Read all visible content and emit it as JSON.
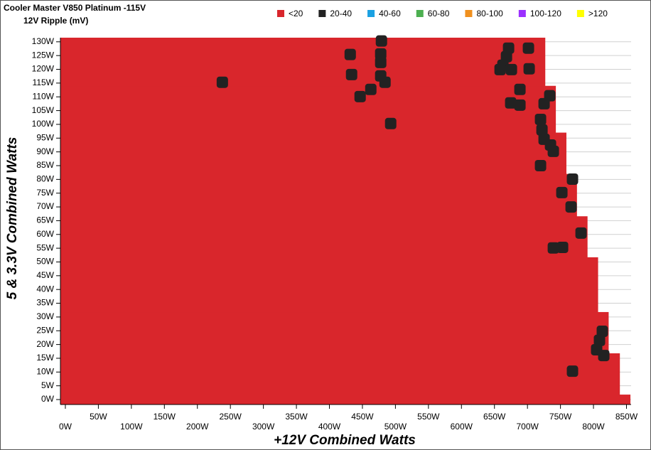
{
  "chart_data": {
    "type": "heatmap",
    "title": "Cooler Master V850 Platinum -115V",
    "subtitle": "12V Ripple (mV)",
    "x_label": "+12V Combined Watts",
    "y_label": "5 & 3.3V Combined Watts",
    "xlim": [
      -7.5,
      857
    ],
    "ylim": [
      -1.8,
      131.5
    ],
    "xticks": [
      {
        "value": 0,
        "label": "0W"
      },
      {
        "value": 50,
        "label": "50W"
      },
      {
        "value": 100,
        "label": "100W"
      },
      {
        "value": 150,
        "label": "150W"
      },
      {
        "value": 200,
        "label": "200W"
      },
      {
        "value": 250,
        "label": "250W"
      },
      {
        "value": 300,
        "label": "300W"
      },
      {
        "value": 350,
        "label": "350W"
      },
      {
        "value": 400,
        "label": "400W"
      },
      {
        "value": 450,
        "label": "450W"
      },
      {
        "value": 500,
        "label": "500W"
      },
      {
        "value": 550,
        "label": "550W"
      },
      {
        "value": 600,
        "label": "600W"
      },
      {
        "value": 650,
        "label": "650W"
      },
      {
        "value": 700,
        "label": "700W"
      },
      {
        "value": 750,
        "label": "750W"
      },
      {
        "value": 800,
        "label": "800W"
      },
      {
        "value": 850,
        "label": "850W"
      }
    ],
    "yticks": [
      {
        "value": 0,
        "label": "0W"
      },
      {
        "value": 5,
        "label": "5W"
      },
      {
        "value": 10,
        "label": "10W"
      },
      {
        "value": 15,
        "label": "15W"
      },
      {
        "value": 20,
        "label": "20W"
      },
      {
        "value": 25,
        "label": "25W"
      },
      {
        "value": 30,
        "label": "30W"
      },
      {
        "value": 35,
        "label": "35W"
      },
      {
        "value": 40,
        "label": "40W"
      },
      {
        "value": 45,
        "label": "45W"
      },
      {
        "value": 50,
        "label": "50W"
      },
      {
        "value": 55,
        "label": "55W"
      },
      {
        "value": 60,
        "label": "60W"
      },
      {
        "value": 65,
        "label": "65W"
      },
      {
        "value": 70,
        "label": "70W"
      },
      {
        "value": 75,
        "label": "75W"
      },
      {
        "value": 80,
        "label": "80W"
      },
      {
        "value": 85,
        "label": "85W"
      },
      {
        "value": 90,
        "label": "90W"
      },
      {
        "value": 95,
        "label": "95W"
      },
      {
        "value": 100,
        "label": "100W"
      },
      {
        "value": 105,
        "label": "105W"
      },
      {
        "value": 110,
        "label": "110W"
      },
      {
        "value": 115,
        "label": "115W"
      },
      {
        "value": 120,
        "label": "120W"
      },
      {
        "value": 125,
        "label": "125W"
      },
      {
        "value": 130,
        "label": "130W"
      }
    ],
    "grid": true,
    "series": [
      {
        "name": "<20",
        "color": "#d9262c",
        "x": [
          856,
          840,
          823,
          807,
          791,
          775,
          759,
          743,
          727
        ],
        "y": [
          1.8,
          16.8,
          31.8,
          51.7,
          66.6,
          82.0,
          97.0,
          114.0,
          131.5
        ]
      },
      {
        "name": "20-40",
        "color": "#222222",
        "x": [
          237.8,
          431.5,
          433.6,
          478.8,
          477.7,
          477.7,
          477.7,
          484.2,
          462.7,
          446.5,
          492.8,
          671.4,
          668.2,
          662.8,
          658.5,
          675.7,
          701.5,
          702.6,
          688.6,
          674.6,
          688.6,
          733.8,
          725.2,
          719.8,
          722.0,
          725.2,
          734.9,
          739.2,
          719.8,
          768.2,
          752.1,
          766.1,
          781.2,
          739.2,
          753.2,
          813.4,
          809.1,
          804.8,
          815.6,
          768.2
        ],
        "y": [
          115.3,
          125.4,
          118.1,
          130.3,
          125.6,
          122.5,
          117.6,
          115.3,
          112.7,
          110.1,
          100.3,
          127.7,
          124.6,
          121.5,
          119.9,
          119.9,
          127.7,
          120.2,
          112.7,
          107.8,
          107.0,
          110.4,
          107.5,
          101.8,
          98.0,
          94.6,
          92.5,
          90.2,
          85.0,
          80.1,
          75.2,
          70.0,
          60.5,
          55.1,
          55.3,
          24.8,
          21.5,
          18.1,
          16.0,
          10.3
        ]
      },
      {
        "name": "40-60",
        "color": "#1ba1e2"
      },
      {
        "name": "60-80",
        "color": "#4caf50"
      },
      {
        "name": "80-100",
        "color": "#f0901e"
      },
      {
        "name": "100-120",
        "color": "#9b30ff"
      },
      {
        "name": ">120",
        "color": "#ffff00"
      }
    ],
    "legend": "top"
  }
}
